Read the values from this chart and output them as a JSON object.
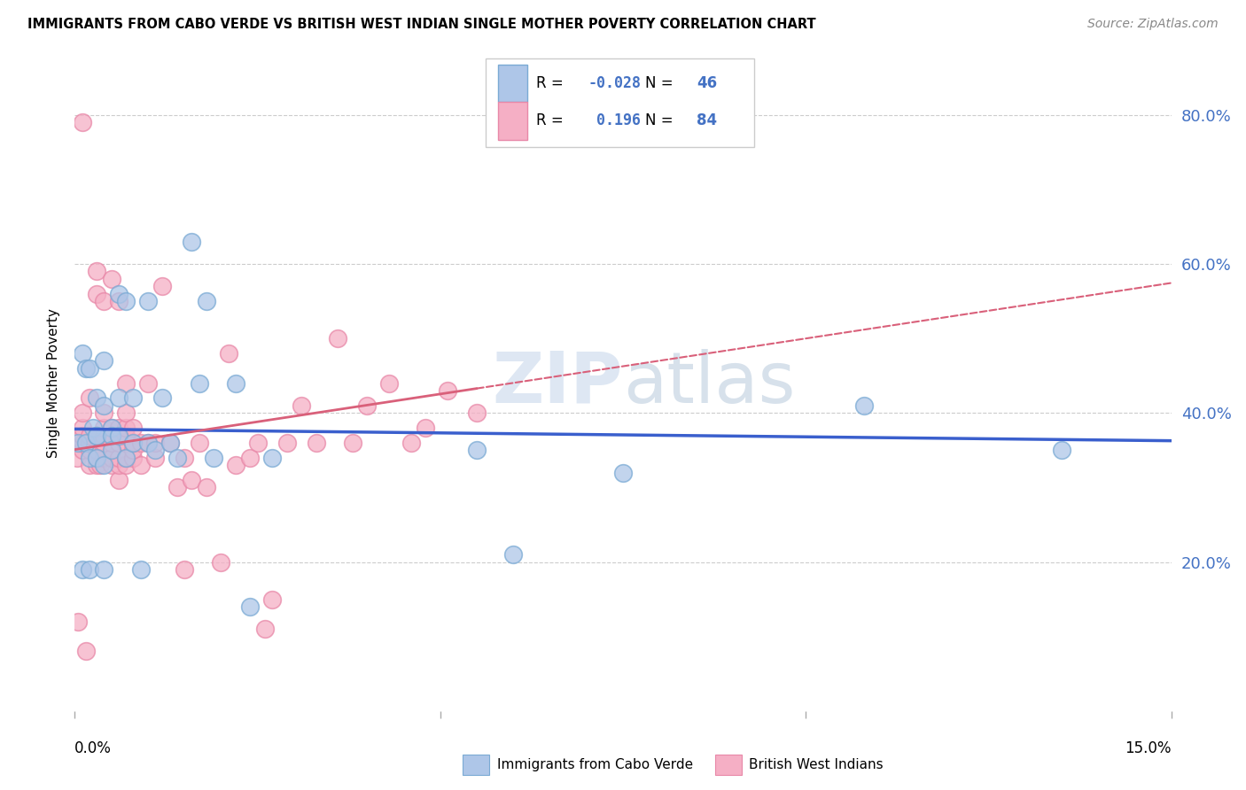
{
  "title": "IMMIGRANTS FROM CABO VERDE VS BRITISH WEST INDIAN SINGLE MOTHER POVERTY CORRELATION CHART",
  "source": "Source: ZipAtlas.com",
  "ylabel": "Single Mother Poverty",
  "ytick_labels": [
    "20.0%",
    "40.0%",
    "60.0%",
    "80.0%"
  ],
  "ytick_values": [
    0.2,
    0.4,
    0.6,
    0.8
  ],
  "xlim": [
    0.0,
    0.15
  ],
  "ylim": [
    0.0,
    0.88
  ],
  "legend_blue_R": "-0.028",
  "legend_blue_N": "46",
  "legend_pink_R": "0.196",
  "legend_pink_N": "84",
  "blue_color": "#aec6e8",
  "pink_color": "#f5afc5",
  "blue_edge_color": "#7aaad4",
  "pink_edge_color": "#e888a8",
  "blue_line_color": "#3a5fcd",
  "pink_line_color": "#d9607a",
  "watermark": "ZIPatlas",
  "blue_scatter_x": [
    0.0005,
    0.001,
    0.001,
    0.0015,
    0.0015,
    0.002,
    0.002,
    0.002,
    0.0025,
    0.003,
    0.003,
    0.003,
    0.003,
    0.004,
    0.004,
    0.004,
    0.004,
    0.005,
    0.005,
    0.005,
    0.006,
    0.006,
    0.006,
    0.007,
    0.007,
    0.008,
    0.008,
    0.009,
    0.01,
    0.01,
    0.011,
    0.012,
    0.013,
    0.014,
    0.016,
    0.017,
    0.018,
    0.019,
    0.022,
    0.024,
    0.027,
    0.055,
    0.06,
    0.075,
    0.108,
    0.135
  ],
  "blue_scatter_y": [
    0.36,
    0.48,
    0.19,
    0.36,
    0.46,
    0.19,
    0.34,
    0.46,
    0.38,
    0.42,
    0.37,
    0.34,
    0.37,
    0.33,
    0.41,
    0.47,
    0.19,
    0.38,
    0.37,
    0.35,
    0.42,
    0.37,
    0.56,
    0.55,
    0.34,
    0.42,
    0.36,
    0.19,
    0.36,
    0.55,
    0.35,
    0.42,
    0.36,
    0.34,
    0.63,
    0.44,
    0.55,
    0.34,
    0.44,
    0.14,
    0.34,
    0.35,
    0.21,
    0.32,
    0.41,
    0.35
  ],
  "pink_scatter_x": [
    0.0003,
    0.0005,
    0.001,
    0.001,
    0.001,
    0.001,
    0.001,
    0.001,
    0.0015,
    0.002,
    0.002,
    0.002,
    0.002,
    0.002,
    0.003,
    0.003,
    0.003,
    0.003,
    0.003,
    0.003,
    0.0035,
    0.004,
    0.004,
    0.004,
    0.004,
    0.004,
    0.004,
    0.004,
    0.005,
    0.005,
    0.005,
    0.005,
    0.005,
    0.005,
    0.006,
    0.006,
    0.006,
    0.006,
    0.006,
    0.006,
    0.006,
    0.007,
    0.007,
    0.007,
    0.007,
    0.007,
    0.007,
    0.007,
    0.008,
    0.008,
    0.008,
    0.008,
    0.009,
    0.009,
    0.01,
    0.01,
    0.011,
    0.011,
    0.012,
    0.013,
    0.014,
    0.015,
    0.015,
    0.016,
    0.017,
    0.018,
    0.02,
    0.021,
    0.022,
    0.024,
    0.025,
    0.026,
    0.027,
    0.029,
    0.031,
    0.033,
    0.036,
    0.038,
    0.04,
    0.043,
    0.046,
    0.048,
    0.051,
    0.055
  ],
  "pink_scatter_y": [
    0.34,
    0.12,
    0.35,
    0.36,
    0.37,
    0.38,
    0.4,
    0.79,
    0.08,
    0.33,
    0.35,
    0.36,
    0.37,
    0.42,
    0.33,
    0.34,
    0.35,
    0.37,
    0.56,
    0.59,
    0.33,
    0.34,
    0.35,
    0.36,
    0.37,
    0.38,
    0.4,
    0.55,
    0.33,
    0.34,
    0.36,
    0.37,
    0.38,
    0.58,
    0.31,
    0.33,
    0.34,
    0.36,
    0.37,
    0.38,
    0.55,
    0.33,
    0.34,
    0.36,
    0.37,
    0.38,
    0.4,
    0.44,
    0.34,
    0.35,
    0.36,
    0.38,
    0.33,
    0.36,
    0.36,
    0.44,
    0.34,
    0.36,
    0.57,
    0.36,
    0.3,
    0.19,
    0.34,
    0.31,
    0.36,
    0.3,
    0.2,
    0.48,
    0.33,
    0.34,
    0.36,
    0.11,
    0.15,
    0.36,
    0.41,
    0.36,
    0.5,
    0.36,
    0.41,
    0.44,
    0.36,
    0.38,
    0.43,
    0.4
  ]
}
